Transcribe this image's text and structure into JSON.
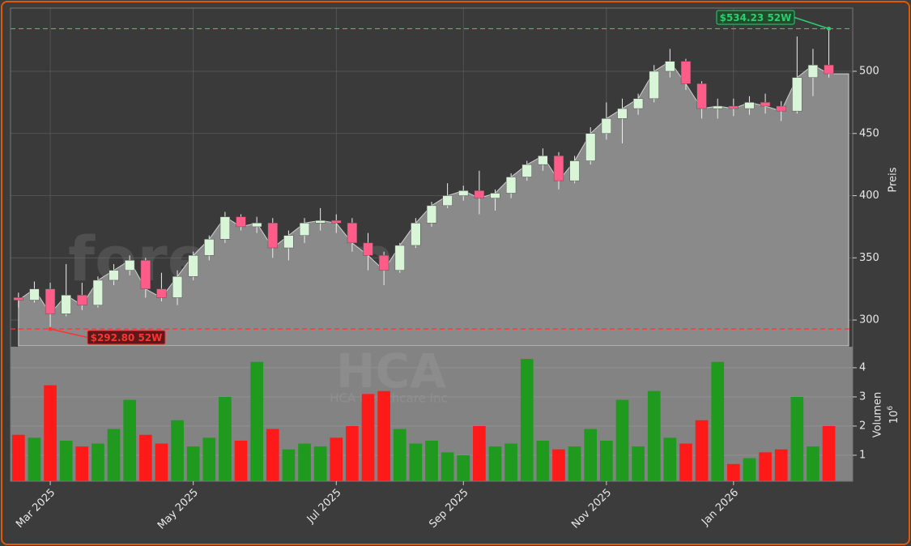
{
  "chart_data": {
    "type": "candlestick",
    "categories": [
      null,
      null,
      "Mar 2025",
      null,
      null,
      null,
      null,
      null,
      null,
      null,
      null,
      "May 2025",
      null,
      null,
      null,
      null,
      null,
      null,
      null,
      null,
      "Jul 2025",
      null,
      null,
      null,
      null,
      null,
      null,
      null,
      "Sep 2025",
      null,
      null,
      null,
      null,
      null,
      null,
      null,
      null,
      "Nov 2025",
      null,
      null,
      null,
      null,
      null,
      null,
      null,
      "Jan 2026",
      null,
      null,
      null,
      null,
      null,
      null
    ],
    "open": [
      318,
      316,
      325,
      305,
      320,
      312,
      332,
      340,
      348,
      325,
      318,
      335,
      352,
      365,
      383,
      375,
      378,
      358,
      368,
      378,
      380,
      378,
      362,
      352,
      340,
      360,
      378,
      392,
      400,
      404,
      398,
      402,
      415,
      425,
      432,
      412,
      428,
      450,
      462,
      470,
      478,
      500,
      508,
      490,
      470,
      472,
      470,
      475,
      472,
      468,
      495,
      505
    ],
    "high": [
      322,
      331,
      330,
      345,
      330,
      335,
      345,
      352,
      350,
      338,
      340,
      355,
      368,
      387,
      385,
      383,
      382,
      372,
      382,
      390,
      385,
      382,
      370,
      355,
      362,
      382,
      395,
      410,
      408,
      420,
      405,
      418,
      428,
      438,
      435,
      432,
      455,
      475,
      478,
      482,
      505,
      518,
      510,
      492,
      478,
      478,
      480,
      482,
      476,
      528,
      518,
      534.23
    ],
    "low": [
      310,
      314,
      292.8,
      303,
      308,
      310,
      328,
      336,
      318,
      315,
      312,
      332,
      348,
      362,
      372,
      370,
      350,
      348,
      362,
      372,
      370,
      355,
      340,
      328,
      338,
      358,
      375,
      390,
      396,
      385,
      388,
      398,
      412,
      420,
      405,
      410,
      425,
      445,
      442,
      465,
      475,
      495,
      485,
      462,
      462,
      464,
      465,
      466,
      460,
      466,
      480,
      495
    ],
    "close": [
      316,
      325,
      305,
      320,
      312,
      332,
      340,
      348,
      325,
      318,
      335,
      352,
      365,
      383,
      375,
      378,
      358,
      368,
      378,
      380,
      378,
      362,
      352,
      340,
      360,
      378,
      392,
      400,
      404,
      398,
      402,
      415,
      425,
      432,
      412,
      428,
      450,
      462,
      470,
      478,
      500,
      508,
      490,
      470,
      472,
      470,
      475,
      472,
      468,
      495,
      505,
      498
    ],
    "up_color": "#d8f5d8",
    "down_color": "#ff5c8a",
    "area_color": "#8a8a8a",
    "ylabel": "Preis",
    "ylim": [
      279.2,
      550.8
    ],
    "yticks": [
      300,
      350,
      400,
      450,
      500
    ],
    "grid": true,
    "annotations": [
      {
        "label": "$534.23 52W",
        "value": 534.23,
        "color": "#2ecc71"
      },
      {
        "label": "$292.80 52W",
        "value": 292.8,
        "color": "#ff3333"
      }
    ],
    "volume": {
      "ylabel": "Volumen",
      "unit_base": "10",
      "unit_exponent": "6",
      "values": [
        1.7,
        1.6,
        3.4,
        1.5,
        1.3,
        1.4,
        1.9,
        2.9,
        1.7,
        1.4,
        2.2,
        1.3,
        1.6,
        3.0,
        1.5,
        4.2,
        1.9,
        1.2,
        1.4,
        1.3,
        1.6,
        2.0,
        3.1,
        3.2,
        1.9,
        1.4,
        1.5,
        1.1,
        1.0,
        2.0,
        1.3,
        1.4,
        4.3,
        1.5,
        1.2,
        1.3,
        1.9,
        1.5,
        2.9,
        1.3,
        3.2,
        1.6,
        1.4,
        2.2,
        4.2,
        0.7,
        0.9,
        1.1,
        1.2,
        3.0,
        1.3,
        2.0
      ],
      "up_color": "#1f9a1f",
      "down_color": "#ff1a1a",
      "ylim": [
        0.11,
        4.72
      ],
      "yticks": [
        1,
        2,
        3,
        4
      ]
    },
    "watermark": "forexsignale.trade",
    "ticker": "HCA",
    "company": "HCA Healthcare Inc"
  }
}
